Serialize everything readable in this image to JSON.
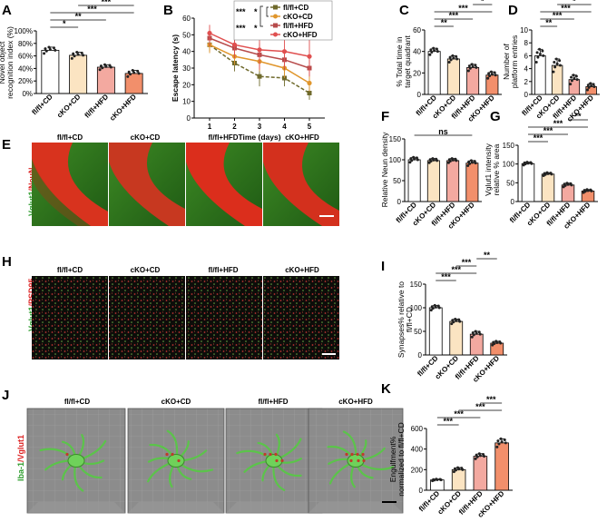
{
  "panels": {
    "A": "A",
    "B": "B",
    "C": "C",
    "D": "D",
    "E": "E",
    "F": "F",
    "G": "G",
    "H": "H",
    "I": "I",
    "J": "J",
    "K": "K"
  },
  "groups": [
    "fl/fl+CD",
    "cKO+CD",
    "fl/fl+HFD",
    "cKO+HFD"
  ],
  "colors": {
    "g1": "#ffffff",
    "g2": "#fbe4c2",
    "g3": "#f3a9a0",
    "g4": "#f28f6b",
    "l1": "#6f6a2c",
    "l2": "#e0962c",
    "l3": "#b74b4b",
    "l4": "#e05050"
  },
  "row_labels": {
    "E_first": "Vglut1",
    "E_second": "/NeuN",
    "H_first": "Vglut1",
    "H_second": "/PSD95",
    "J_first": "Iba-1",
    "J_second": "/Vglut1"
  },
  "chart_data": [
    {
      "panel": "A",
      "type": "bar",
      "categories": [
        "fl/fl+CD",
        "cKO+CD",
        "fl/fl+HFD",
        "cKO+HFD"
      ],
      "values": [
        69,
        61,
        42,
        32
      ],
      "errors": [
        5,
        5,
        4,
        5
      ],
      "ylabel_lines": [
        "Novel object",
        "recognition index (%)"
      ],
      "ylim": [
        0,
        100
      ],
      "yticks": [
        0,
        20,
        40,
        60,
        80,
        100
      ],
      "yticklabels": [
        "0%",
        "20%",
        "40%",
        "60%",
        "80%",
        "100%"
      ],
      "sig": [
        {
          "a": 0,
          "b": 1,
          "t": "*"
        },
        {
          "a": 0,
          "b": 2,
          "t": "**"
        },
        {
          "a": 0,
          "b": 3,
          "t": "***"
        },
        {
          "a": 1,
          "b": 3,
          "t": "***"
        },
        {
          "a": 2,
          "b": 3,
          "t": "**"
        }
      ]
    },
    {
      "panel": "B",
      "type": "line",
      "x": [
        1,
        2,
        3,
        4,
        5
      ],
      "xlabel": "Time (days)",
      "ylabel": "Escape latency (s)",
      "ylim": [
        0,
        60
      ],
      "yticks": [
        0,
        10,
        20,
        30,
        40,
        50,
        60
      ],
      "series": [
        {
          "name": "fl/fl+CD",
          "values": [
            44,
            33,
            25,
            24,
            15
          ],
          "err": [
            4,
            5,
            6,
            5,
            4
          ]
        },
        {
          "name": "cKO+CD",
          "values": [
            44,
            37,
            34,
            30,
            21
          ],
          "err": [
            5,
            5,
            6,
            6,
            5
          ]
        },
        {
          "name": "fl/fl+HFD",
          "values": [
            48,
            42,
            38,
            35,
            30
          ],
          "err": [
            5,
            6,
            7,
            6,
            5
          ]
        },
        {
          "name": "cKO+HFD",
          "values": [
            51,
            44,
            41,
            40,
            37
          ],
          "err": [
            5,
            8,
            12,
            10,
            12
          ]
        }
      ],
      "legend_sig": [
        "***",
        "***",
        "*",
        "*"
      ]
    },
    {
      "panel": "C",
      "type": "bar",
      "categories": [
        "fl/fl+CD",
        "cKO+CD",
        "fl/fl+HFD",
        "cKO+HFD"
      ],
      "values": [
        40,
        33,
        25,
        18
      ],
      "errors": [
        3,
        3,
        3,
        3
      ],
      "ylabel_lines": [
        "% Total time in",
        "target quadrant"
      ],
      "ylim": [
        0,
        60
      ],
      "yticks": [
        0,
        20,
        40,
        60
      ],
      "yticklabels": [
        "0",
        "20",
        "40",
        "60"
      ],
      "sig": [
        {
          "a": 0,
          "b": 1,
          "t": "**"
        },
        {
          "a": 0,
          "b": 2,
          "t": "***"
        },
        {
          "a": 0,
          "b": 3,
          "t": "***"
        },
        {
          "a": 2,
          "b": 3,
          "t": "*"
        }
      ]
    },
    {
      "panel": "D",
      "type": "bar",
      "categories": [
        "fl/fl+CD",
        "cKO+CD",
        "fl/fl+HFD",
        "cKO+HFD"
      ],
      "values": [
        6,
        4.5,
        2.3,
        1.2
      ],
      "errors": [
        1,
        1,
        0.7,
        0.5
      ],
      "ylabel_lines": [
        "Number of",
        "platform entries"
      ],
      "ylim": [
        0,
        10
      ],
      "yticks": [
        0,
        2,
        4,
        6,
        8,
        10
      ],
      "yticklabels": [
        "0",
        "2",
        "4",
        "6",
        "8",
        "10"
      ],
      "sig": [
        {
          "a": 0,
          "b": 1,
          "t": "**"
        },
        {
          "a": 0,
          "b": 2,
          "t": "***"
        },
        {
          "a": 0,
          "b": 3,
          "t": "***"
        },
        {
          "a": 1,
          "b": 3,
          "t": "*"
        }
      ]
    },
    {
      "panel": "F",
      "type": "bar",
      "categories": [
        "fl/fl+CD",
        "cKO+CD",
        "fl/fl+HFD",
        "cKO+HFD"
      ],
      "values": [
        100,
        98,
        98,
        92
      ],
      "errors": [
        6,
        5,
        5,
        6
      ],
      "ylabel_lines": [
        "Relative Neun density"
      ],
      "ylim": [
        0,
        150
      ],
      "yticks": [
        0,
        50,
        100,
        150
      ],
      "yticklabels": [
        "0",
        "50",
        "100",
        "150"
      ],
      "sig": [
        {
          "a": 0,
          "b": 3,
          "t": "ns"
        }
      ]
    },
    {
      "panel": "G",
      "type": "bar",
      "categories": [
        "fl/fl+CD",
        "cKO+CD",
        "fl/fl+HFD",
        "cKO+HFD"
      ],
      "values": [
        101,
        73,
        44,
        28
      ],
      "errors": [
        4,
        4,
        5,
        4
      ],
      "ylabel_lines": [
        "Vglut1 intensity",
        "relative % area"
      ],
      "ylim": [
        0,
        150
      ],
      "yticks": [
        0,
        50,
        100,
        150
      ],
      "yticklabels": [
        "0",
        "50",
        "100",
        "150"
      ],
      "sig": [
        {
          "a": 0,
          "b": 1,
          "t": "***"
        },
        {
          "a": 0,
          "b": 2,
          "t": "***"
        },
        {
          "a": 0,
          "b": 3,
          "t": "***"
        },
        {
          "a": 2,
          "b": 3,
          "t": "**"
        }
      ]
    },
    {
      "panel": "I",
      "type": "bar",
      "categories": [
        "fl/fl+CD",
        "cKO+CD",
        "fl/fl+HFD",
        "cKO+HFD"
      ],
      "values": [
        100,
        71,
        44,
        25
      ],
      "errors": [
        5,
        5,
        6,
        4
      ],
      "ylabel_lines": [
        "Synapses% relative to",
        "fl/fl+CD"
      ],
      "ylim": [
        0,
        150
      ],
      "yticks": [
        0,
        50,
        100,
        150
      ],
      "yticklabels": [
        "0",
        "50",
        "100",
        "150"
      ],
      "sig": [
        {
          "a": 0,
          "b": 1,
          "t": "***"
        },
        {
          "a": 0,
          "b": 2,
          "t": "***"
        },
        {
          "a": 1,
          "b": 2,
          "t": "***"
        },
        {
          "a": 2,
          "b": 3,
          "t": "**"
        }
      ]
    },
    {
      "panel": "K",
      "type": "bar",
      "categories": [
        "fl/fl+CD",
        "cKO+CD",
        "fl/fl+HFD",
        "cKO+HFD"
      ],
      "values": [
        100,
        200,
        330,
        460
      ],
      "errors": [
        8,
        20,
        25,
        40
      ],
      "ylabel_lines": [
        "Engulfment%",
        "normalized to fl/fl+CD"
      ],
      "ylim": [
        0,
        600
      ],
      "yticks": [
        0,
        200,
        400,
        600
      ],
      "yticklabels": [
        "0",
        "200",
        "400",
        "600"
      ],
      "sig": [
        {
          "a": 0,
          "b": 1,
          "t": "***"
        },
        {
          "a": 0,
          "b": 2,
          "t": "***"
        },
        {
          "a": 1,
          "b": 3,
          "t": "***"
        },
        {
          "a": 2,
          "b": 3,
          "t": "***"
        }
      ]
    }
  ]
}
